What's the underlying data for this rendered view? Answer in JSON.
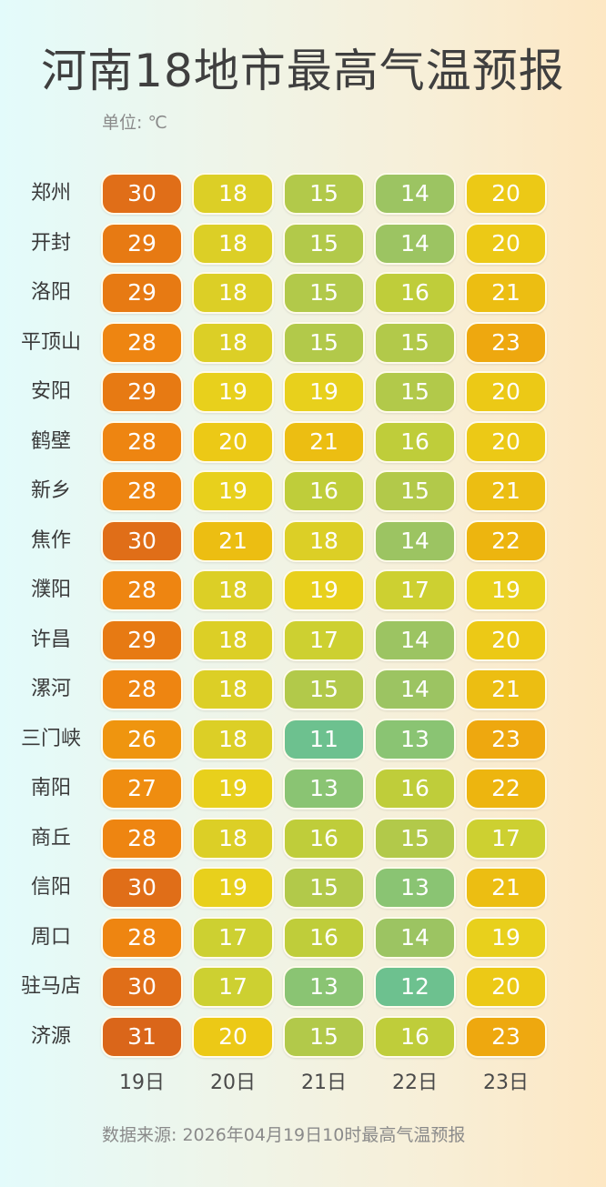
{
  "title": "河南18地市最高气温预报",
  "unit": "单位: ℃",
  "source": "数据来源: 2026年04月19日10时最高气温预报",
  "chart_data": {
    "type": "heatmap",
    "title": "河南18地市最高气温预报",
    "columns": [
      "19日",
      "20日",
      "21日",
      "22日",
      "23日"
    ],
    "rows": [
      {
        "city": "郑州",
        "values": [
          30,
          18,
          15,
          14,
          20
        ]
      },
      {
        "city": "开封",
        "values": [
          29,
          18,
          15,
          14,
          20
        ]
      },
      {
        "city": "洛阳",
        "values": [
          29,
          18,
          15,
          16,
          21
        ]
      },
      {
        "city": "平顶山",
        "values": [
          28,
          18,
          15,
          15,
          23
        ]
      },
      {
        "city": "安阳",
        "values": [
          29,
          19,
          19,
          15,
          20
        ]
      },
      {
        "city": "鹤壁",
        "values": [
          28,
          20,
          21,
          16,
          20
        ]
      },
      {
        "city": "新乡",
        "values": [
          28,
          19,
          16,
          15,
          21
        ]
      },
      {
        "city": "焦作",
        "values": [
          30,
          21,
          18,
          14,
          22
        ]
      },
      {
        "city": "濮阳",
        "values": [
          28,
          18,
          19,
          17,
          19
        ]
      },
      {
        "city": "许昌",
        "values": [
          29,
          18,
          17,
          14,
          20
        ]
      },
      {
        "city": "漯河",
        "values": [
          28,
          18,
          15,
          14,
          21
        ]
      },
      {
        "city": "三门峡",
        "values": [
          26,
          18,
          11,
          13,
          23
        ]
      },
      {
        "city": "南阳",
        "values": [
          27,
          19,
          13,
          16,
          22
        ]
      },
      {
        "city": "商丘",
        "values": [
          28,
          18,
          16,
          15,
          17
        ]
      },
      {
        "city": "信阳",
        "values": [
          30,
          19,
          15,
          13,
          21
        ]
      },
      {
        "city": "周口",
        "values": [
          28,
          17,
          16,
          14,
          19
        ]
      },
      {
        "city": "驻马店",
        "values": [
          30,
          17,
          13,
          12,
          20
        ]
      },
      {
        "city": "济源",
        "values": [
          31,
          20,
          15,
          16,
          23
        ]
      }
    ],
    "color_scale": [
      {
        "value": 11,
        "color": "#6dc18f"
      },
      {
        "value": 13,
        "color": "#8ac473"
      },
      {
        "value": 14,
        "color": "#9cc462"
      },
      {
        "value": 15,
        "color": "#b2c94a"
      },
      {
        "value": 16,
        "color": "#bfcd3a"
      },
      {
        "value": 17,
        "color": "#cdd031"
      },
      {
        "value": 18,
        "color": "#dccf26"
      },
      {
        "value": 19,
        "color": "#e8d01c"
      },
      {
        "value": 20,
        "color": "#ecc916"
      },
      {
        "value": 21,
        "color": "#ecbe12"
      },
      {
        "value": 22,
        "color": "#edb50f"
      },
      {
        "value": 23,
        "color": "#eea80f"
      },
      {
        "value": 26,
        "color": "#ef950f"
      },
      {
        "value": 27,
        "color": "#ef8d10"
      },
      {
        "value": 28,
        "color": "#ee8511"
      },
      {
        "value": 29,
        "color": "#e77a13"
      },
      {
        "value": 30,
        "color": "#e06e18"
      },
      {
        "value": 31,
        "color": "#da661a"
      }
    ]
  }
}
